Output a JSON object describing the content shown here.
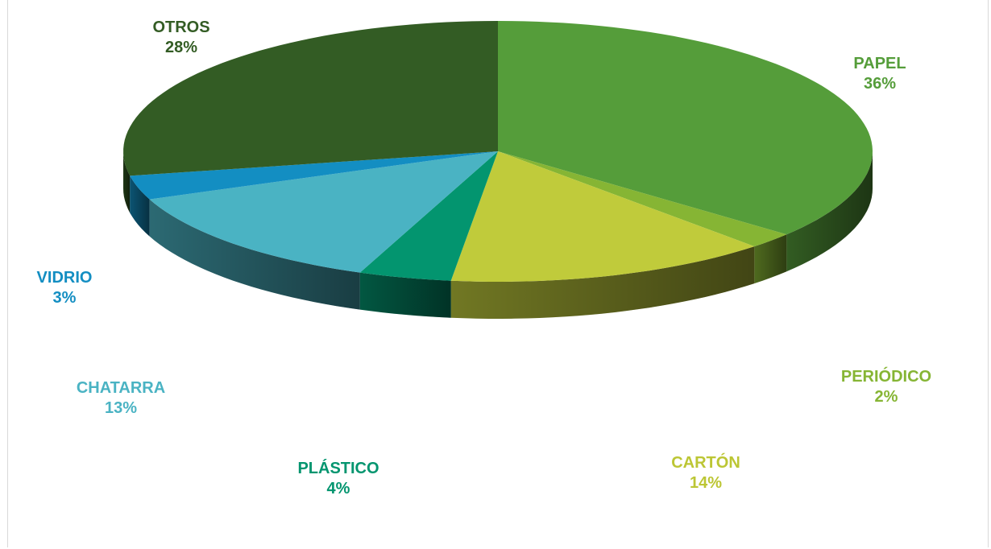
{
  "chart_data": {
    "type": "pie",
    "title": "",
    "style": "3d",
    "slices": [
      {
        "name": "PAPEL",
        "value": 36,
        "label": "36%",
        "color": "#559d3a"
      },
      {
        "name": "PERIÓDICO",
        "value": 2,
        "label": "2%",
        "color": "#86b534"
      },
      {
        "name": "CARTÓN",
        "value": 14,
        "label": "14%",
        "color": "#c0cb3b"
      },
      {
        "name": "PLÁSTICO",
        "value": 4,
        "label": "4%",
        "color": "#03956f"
      },
      {
        "name": "CHATARRA",
        "value": 13,
        "label": "13%",
        "color": "#4ab3c3"
      },
      {
        "name": "VIDRIO",
        "value": 3,
        "label": "3%",
        "color": "#138ec2"
      },
      {
        "name": "OTROS",
        "value": 28,
        "label": "28%",
        "color": "#335c24"
      }
    ],
    "label_colors": {
      "PAPEL": "#559d3a",
      "PERIÓDICO": "#86b534",
      "CARTÓN": "#bcc634",
      "PLÁSTICO": "#03956f",
      "CHATARRA": "#4ab3c3",
      "VIDRIO": "#138ec2",
      "OTROS": "#335c24"
    }
  }
}
